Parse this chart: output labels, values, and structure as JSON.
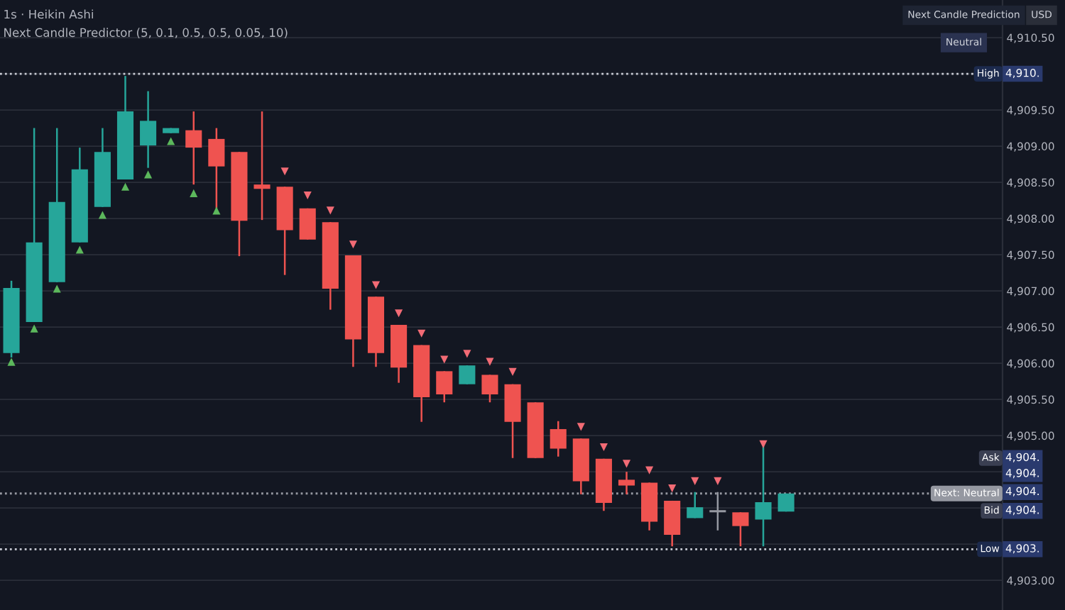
{
  "chart_data": {
    "type": "candlestick",
    "title": "1s · Heikin Ashi",
    "subtitle": "Next Candle Predictor (5, 0.1, 0.5, 0.5, 0.05, 10)",
    "categories": [
      null,
      null,
      null,
      null,
      null,
      null,
      null,
      null,
      null,
      null,
      null,
      null,
      null,
      null,
      null,
      null,
      null,
      null,
      null,
      null,
      null,
      null,
      null,
      null,
      null,
      null,
      null,
      null,
      null,
      null,
      null,
      null,
      null,
      null,
      null,
      null,
      null,
      null,
      null,
      null,
      null,
      null,
      null,
      null
    ],
    "ohlc": [
      [
        4906.14,
        4907.14,
        4906.08,
        4907.04
      ],
      [
        4906.57,
        4909.25,
        4906.57,
        4907.67
      ],
      [
        4907.12,
        4909.25,
        4907.12,
        4908.23
      ],
      [
        4907.67,
        4908.98,
        4907.67,
        4908.68
      ],
      [
        4908.16,
        4909.25,
        4908.16,
        4908.92
      ],
      [
        4908.54,
        4909.97,
        4908.54,
        4909.48
      ],
      [
        4909.01,
        4909.76,
        4908.7,
        4909.35
      ],
      [
        4909.18,
        4909.25,
        4909.18,
        4909.25
      ],
      [
        4909.22,
        4909.48,
        4908.47,
        4908.98
      ],
      [
        4909.1,
        4909.25,
        4908.14,
        4908.72
      ],
      [
        4908.92,
        4908.92,
        4907.48,
        4907.97
      ],
      [
        4908.47,
        4909.48,
        4907.98,
        4908.41
      ],
      [
        4908.44,
        4908.44,
        4907.22,
        4907.84
      ],
      [
        4908.14,
        4908.14,
        4907.71,
        4907.71
      ],
      [
        4907.95,
        4907.95,
        4906.74,
        4907.03
      ],
      [
        4907.49,
        4907.49,
        4905.95,
        4906.33
      ],
      [
        4906.92,
        4906.92,
        4905.95,
        4906.14
      ],
      [
        4906.53,
        4906.53,
        4905.73,
        4905.94
      ],
      [
        4906.25,
        4906.25,
        4905.19,
        4905.53
      ],
      [
        4905.89,
        4905.89,
        4905.46,
        4905.57
      ],
      [
        4905.71,
        4905.97,
        4905.71,
        4905.97
      ],
      [
        4905.84,
        4905.84,
        4905.46,
        4905.57
      ],
      [
        4905.71,
        4905.71,
        4904.69,
        4905.19
      ],
      [
        4905.46,
        4905.46,
        4904.69,
        4904.69
      ],
      [
        4905.09,
        4905.2,
        4904.71,
        4904.82
      ],
      [
        4904.96,
        4904.96,
        4904.19,
        4904.37
      ],
      [
        4904.68,
        4904.68,
        4903.96,
        4904.07
      ],
      [
        4904.39,
        4904.5,
        4904.19,
        4904.31
      ],
      [
        4904.35,
        4904.35,
        4903.69,
        4903.81
      ],
      [
        4904.1,
        4904.1,
        4903.47,
        4903.63
      ],
      [
        4903.86,
        4904.22,
        4903.86,
        4904.01
      ],
      [
        4903.97,
        4904.22,
        4903.69,
        4903.94
      ],
      [
        4903.94,
        4903.94,
        4903.47,
        4903.75
      ],
      [
        4903.84,
        4904.89,
        4903.47,
        4904.08
      ],
      [
        4903.95,
        4904.2,
        4903.95,
        4904.2
      ],
      null,
      null,
      null,
      null,
      null,
      null,
      null,
      null,
      null
    ],
    "colors": [
      "#26a69a",
      "#26a69a",
      "#26a69a",
      "#26a69a",
      "#26a69a",
      "#26a69a",
      "#26a69a",
      "#26a69a",
      "#ef5350",
      "#ef5350",
      "#ef5350",
      "#ef5350",
      "#ef5350",
      "#ef5350",
      "#ef5350",
      "#ef5350",
      "#ef5350",
      "#ef5350",
      "#ef5350",
      "#ef5350",
      "#26a69a",
      "#ef5350",
      "#ef5350",
      "#ef5350",
      "#ef5350",
      "#ef5350",
      "#ef5350",
      "#ef5350",
      "#ef5350",
      "#ef5350",
      "#26a69a",
      "#9598a1",
      "#ef5350",
      "#26a69a",
      "#26a69a",
      null,
      null,
      null,
      null,
      null,
      null,
      null,
      null,
      null
    ],
    "series": [
      {
        "type": "scatter",
        "marker": "triangle",
        "color": "#5cb85c",
        "values": [
          4906.02,
          4906.48,
          4907.03,
          4907.57,
          4908.05,
          4908.44,
          4908.61,
          4909.07,
          4908.35,
          4908.11,
          null,
          null,
          null,
          null,
          null,
          null,
          null,
          null,
          null,
          null,
          null,
          null,
          null,
          null,
          null,
          null,
          null,
          null,
          null,
          null,
          null,
          null,
          null,
          null,
          null,
          null,
          null,
          null,
          null,
          null,
          null,
          null,
          null,
          null
        ]
      },
      {
        "type": "scatter",
        "marker": "triangle_down",
        "color": "#f26b75",
        "values": [
          null,
          null,
          null,
          null,
          null,
          null,
          null,
          null,
          null,
          null,
          null,
          null,
          4908.65,
          4908.32,
          4908.11,
          4907.64,
          4907.08,
          4906.69,
          4906.41,
          4906.05,
          4906.13,
          4906.02,
          4905.88,
          null,
          null,
          4905.12,
          4904.84,
          4904.61,
          4904.52,
          4904.27,
          4904.37,
          4904.37,
          null,
          4904.88,
          null,
          null,
          null,
          null,
          null,
          null,
          null,
          null,
          null,
          null
        ]
      }
    ],
    "ylim": [
      4902.59,
      4911.02
    ],
    "yticks": [
      {
        "value": 4910.5,
        "label": "4,910.50"
      },
      {
        "value": 4910.0,
        "label": null
      },
      {
        "value": 4909.5,
        "label": "4,909.50"
      },
      {
        "value": 4909.0,
        "label": "4,909.00"
      },
      {
        "value": 4908.5,
        "label": "4,908.50"
      },
      {
        "value": 4908.0,
        "label": "4,908.00"
      },
      {
        "value": 4907.5,
        "label": "4,907.50"
      },
      {
        "value": 4907.0,
        "label": "4,907.00"
      },
      {
        "value": 4906.5,
        "label": "4,906.50"
      },
      {
        "value": 4906.0,
        "label": "4,906.00"
      },
      {
        "value": 4905.5,
        "label": "4,905.50"
      },
      {
        "value": 4905.0,
        "label": "4,905.00"
      },
      {
        "value": 4904.5,
        "label": null
      },
      {
        "value": 4904.0,
        "label": null
      },
      {
        "value": 4903.5,
        "label": null
      },
      {
        "value": 4903.0,
        "label": "4,903.00"
      }
    ],
    "tick_labels": "y",
    "grid": "y",
    "ref_lines": [
      {
        "axis": "y",
        "value": 4910.0,
        "label": "High",
        "color": "#c8cbd4",
        "line_style": "dotted"
      },
      {
        "axis": "y",
        "value": 4903.43,
        "label": "Low",
        "color": "#c8cbd4",
        "line_style": "dotted"
      },
      {
        "axis": "y",
        "value": 4904.2,
        "label": "Next: Neutral",
        "color": "#9598a1",
        "line_style": "dotted"
      }
    ],
    "annotations": [
      {
        "text": "Ask",
        "y": 4904.69
      },
      {
        "text": "Bid",
        "y": 4903.96
      },
      {
        "text": "4,910.",
        "y": 4910.0
      },
      {
        "text": "4,903.",
        "y": 4903.43
      },
      {
        "text": "4,904.",
        "y": 4904.69
      },
      {
        "text": "4,904.",
        "y": 4904.47
      },
      {
        "text": "4,904.",
        "y": 4904.22
      },
      {
        "text": "4,904.",
        "y": 4903.96
      },
      "USD",
      "Next Candle Prediction",
      "Neutral"
    ]
  }
}
